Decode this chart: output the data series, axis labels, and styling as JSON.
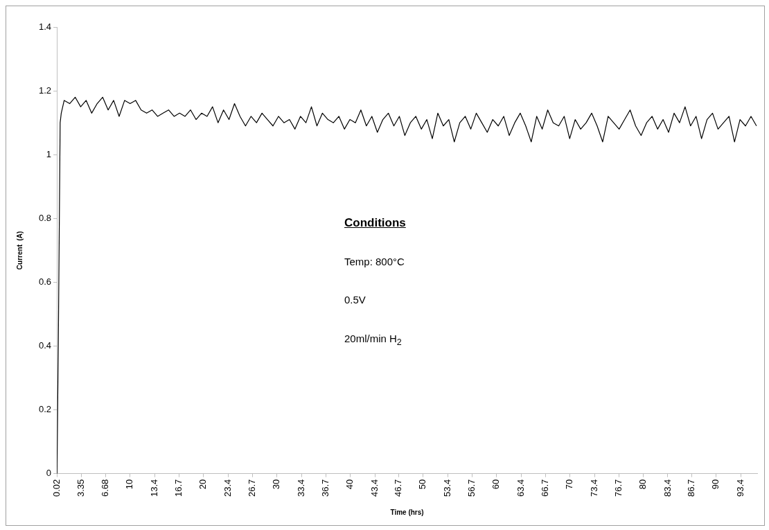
{
  "chart_data": {
    "type": "line",
    "xlabel": "Time (hrs)",
    "ylabel": "Current  (A)",
    "color": "#000000",
    "annotations": [
      "Conditions",
      "Temp: 800°C",
      "0.5V",
      "20ml/min H$_{2}$"
    ],
    "xlim": [
      0,
      95.6
    ],
    "xticks": [
      0.02,
      3.35,
      6.68,
      10,
      13.4,
      16.7,
      20,
      23.4,
      26.7,
      30,
      33.4,
      36.7,
      40,
      43.4,
      46.7,
      50,
      53.4,
      56.7,
      60,
      63.4,
      66.7,
      70,
      73.4,
      76.7,
      80,
      83.4,
      86.7,
      90,
      93.4
    ],
    "ylim": [
      0,
      1.4
    ],
    "yticks": [
      0,
      0.2,
      0.4,
      0.6,
      0.8,
      1,
      1.2,
      1.4
    ],
    "x": [
      0.02,
      0.2,
      0.45,
      0.6,
      1,
      1.75,
      2.5,
      3.25,
      4,
      4.75,
      5.5,
      6.25,
      7,
      7.75,
      8.5,
      9.25,
      10,
      10.75,
      11.5,
      12.25,
      13,
      13.75,
      14.5,
      15.25,
      16,
      16.75,
      17.5,
      18.25,
      19,
      19.75,
      20.5,
      21.25,
      22,
      22.75,
      23.5,
      24.25,
      25,
      25.75,
      26.5,
      27.25,
      28,
      28.75,
      29.5,
      30.25,
      31,
      31.75,
      32.5,
      33.25,
      34,
      34.75,
      35.5,
      36.25,
      37,
      37.75,
      38.5,
      39.25,
      40,
      40.75,
      41.5,
      42.25,
      43,
      43.75,
      44.5,
      45.25,
      46,
      46.75,
      47.5,
      48.25,
      49,
      49.75,
      50.5,
      51.25,
      52,
      52.75,
      53.5,
      54.25,
      55,
      55.75,
      56.5,
      57.25,
      58,
      58.75,
      59.5,
      60.25,
      61,
      61.75,
      62.5,
      63.25,
      64,
      64.75,
      65.5,
      66.25,
      67,
      67.75,
      68.5,
      69.25,
      70,
      70.75,
      71.5,
      72.25,
      73,
      73.75,
      74.5,
      75.25,
      76,
      76.75,
      77.5,
      78.25,
      79,
      79.75,
      80.5,
      81.25,
      82,
      82.75,
      83.5,
      84.25,
      85,
      85.75,
      86.5,
      87.25,
      88,
      88.75,
      89.5,
      90.25,
      91,
      91.75,
      92.5,
      93.25,
      94,
      94.75,
      95.5
    ],
    "values": [
      0,
      0.41,
      1.1,
      1.13,
      1.17,
      1.16,
      1.18,
      1.15,
      1.17,
      1.13,
      1.16,
      1.18,
      1.14,
      1.17,
      1.12,
      1.17,
      1.16,
      1.17,
      1.14,
      1.13,
      1.14,
      1.12,
      1.13,
      1.14,
      1.12,
      1.13,
      1.12,
      1.14,
      1.11,
      1.13,
      1.12,
      1.15,
      1.1,
      1.14,
      1.11,
      1.16,
      1.12,
      1.09,
      1.12,
      1.1,
      1.13,
      1.11,
      1.09,
      1.12,
      1.1,
      1.11,
      1.08,
      1.12,
      1.1,
      1.15,
      1.09,
      1.13,
      1.11,
      1.1,
      1.12,
      1.08,
      1.11,
      1.1,
      1.14,
      1.09,
      1.12,
      1.07,
      1.11,
      1.13,
      1.09,
      1.12,
      1.06,
      1.1,
      1.12,
      1.08,
      1.11,
      1.05,
      1.13,
      1.09,
      1.11,
      1.04,
      1.1,
      1.12,
      1.08,
      1.13,
      1.1,
      1.07,
      1.11,
      1.09,
      1.12,
      1.06,
      1.1,
      1.13,
      1.09,
      1.04,
      1.12,
      1.08,
      1.14,
      1.1,
      1.09,
      1.12,
      1.05,
      1.11,
      1.08,
      1.1,
      1.13,
      1.09,
      1.04,
      1.12,
      1.1,
      1.08,
      1.11,
      1.14,
      1.09,
      1.06,
      1.1,
      1.12,
      1.08,
      1.11,
      1.07,
      1.13,
      1.1,
      1.15,
      1.09,
      1.12,
      1.05,
      1.11,
      1.13,
      1.08,
      1.1,
      1.12,
      1.04,
      1.11,
      1.09,
      1.12,
      1.09
    ]
  }
}
